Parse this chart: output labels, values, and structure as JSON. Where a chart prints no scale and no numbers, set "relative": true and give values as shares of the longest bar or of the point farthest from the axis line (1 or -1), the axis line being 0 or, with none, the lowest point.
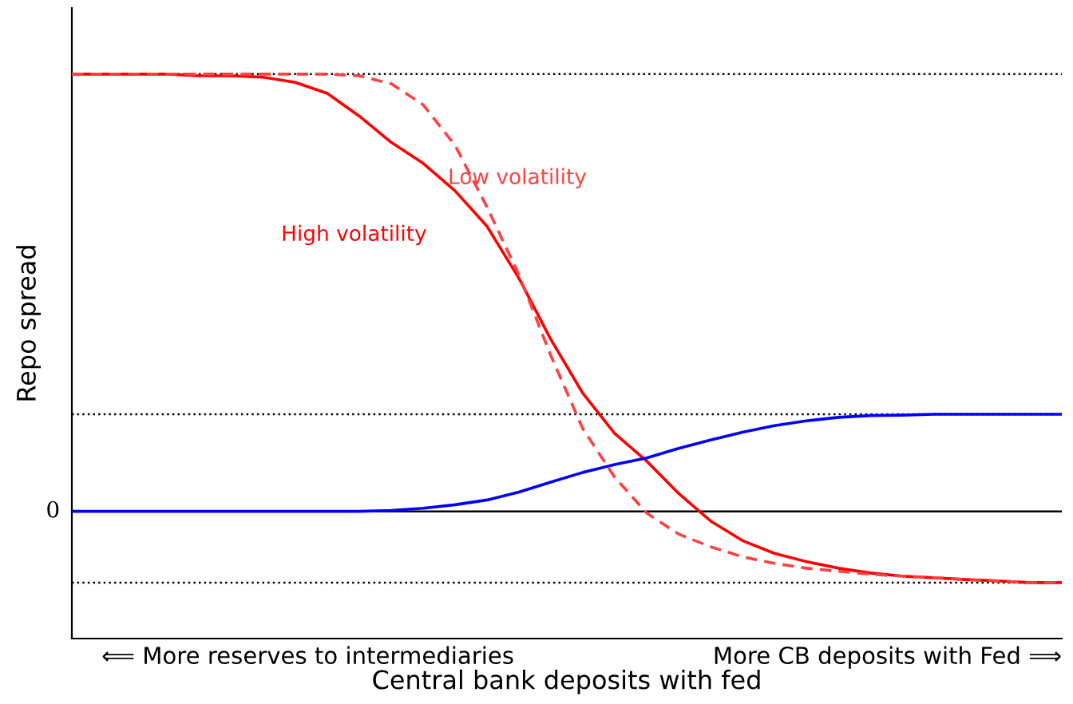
{
  "chart_data": {
    "type": "line",
    "relative": true,
    "xlabel": "Central bank deposits with fed",
    "ylabel": "Repo spread",
    "categories": [
      null,
      null,
      null,
      null,
      null,
      null,
      null,
      null,
      null,
      null,
      null,
      null,
      null,
      null,
      null,
      null,
      null,
      null,
      null,
      null,
      null,
      null,
      null,
      null,
      null,
      null,
      null,
      null,
      null,
      null,
      null,
      null
    ],
    "series": [
      {
        "name": "High volatility",
        "color": "#ff0000",
        "line_style": "solid",
        "values": [
          1.0,
          1.0,
          1.0,
          1.0,
          0.996,
          0.996,
          0.993,
          0.981,
          0.956,
          0.904,
          0.844,
          0.796,
          0.733,
          0.652,
          0.533,
          0.393,
          0.27,
          0.178,
          0.115,
          0.041,
          -0.022,
          -0.067,
          -0.096,
          -0.115,
          -0.13,
          -0.141,
          -0.148,
          -0.152,
          -0.156,
          -0.159,
          -0.163,
          -0.163
        ]
      },
      {
        "name": "Low volatility",
        "color": "#ff4040",
        "line_style": "dashed",
        "values": [
          1.0,
          1.0,
          1.0,
          1.0,
          1.0,
          1.0,
          1.0,
          1.0,
          1.0,
          0.996,
          0.978,
          0.93,
          0.837,
          0.696,
          0.541,
          0.356,
          0.189,
          0.078,
          -0.004,
          -0.052,
          -0.081,
          -0.104,
          -0.119,
          -0.13,
          -0.137,
          -0.144,
          -0.148,
          -0.152,
          -0.156,
          -0.159,
          -0.163,
          -0.163
        ]
      },
      {
        "color": "#0000ff",
        "line_style": "solid",
        "values": [
          0,
          0,
          0,
          0,
          0,
          0,
          0,
          0,
          0,
          0,
          0.002,
          0.007,
          0.015,
          0.026,
          0.044,
          0.067,
          0.089,
          0.107,
          0.122,
          0.144,
          0.163,
          0.181,
          0.196,
          0.207,
          0.215,
          0.219,
          0.22,
          0.222,
          0.222,
          0.222,
          0.222,
          0.222
        ]
      }
    ],
    "ref_lines": [
      {
        "axis": "y",
        "value": 1.0,
        "color": "#000000",
        "line_style": "dotted"
      },
      {
        "axis": "y",
        "value": 0.222,
        "color": "#000000",
        "line_style": "dotted"
      },
      {
        "axis": "y",
        "value": 0,
        "label": "0",
        "color": "#000000",
        "line_style": "solid"
      },
      {
        "axis": "y",
        "value": -0.163,
        "color": "#000000",
        "line_style": "dotted"
      }
    ],
    "annotations": [
      "⟸ More reserves to intermediaries",
      "More CB deposits with Fed ⟹"
    ]
  }
}
